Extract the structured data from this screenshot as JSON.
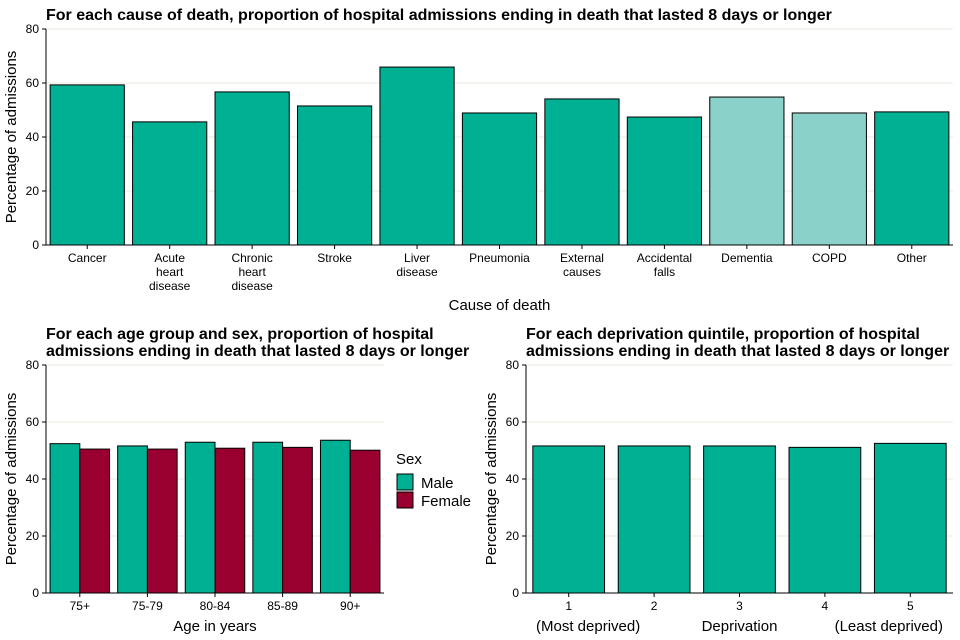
{
  "chart_data": [
    {
      "type": "bar",
      "title": "For each cause of death,  proportion of hospital admissions ending in death that lasted 8 days or longer",
      "xlabel": "Cause of death",
      "ylabel": "Percentage of admissions",
      "ylim": [
        0,
        80
      ],
      "yticks": [
        0,
        20,
        40,
        60,
        80
      ],
      "grid": true,
      "categories": [
        "Cancer",
        "Acute\nheart\ndisease",
        "Chronic\nheart\ndisease",
        "Stroke",
        "Liver\ndisease",
        "Pneumonia",
        "External\ncauses",
        "Accidental\nfalls",
        "Dementia",
        "COPD",
        "Other"
      ],
      "values": [
        59.3,
        45.6,
        56.7,
        51.5,
        65.9,
        48.9,
        54.1,
        47.4,
        54.8,
        48.9,
        49.3
      ],
      "colors": [
        "#00b093",
        "#00b093",
        "#00b093",
        "#00b093",
        "#00b093",
        "#00b093",
        "#00b093",
        "#00b093",
        "#8ad1c9",
        "#8ad1c9",
        "#00b093"
      ]
    },
    {
      "type": "bar",
      "title": "For each age group and sex, proportion of hospital\nadmissions ending in death that lasted 8 days or longer",
      "xlabel": "Age in years",
      "ylabel": "Percentage of admissions",
      "ylim": [
        0,
        80
      ],
      "yticks": [
        0,
        20,
        40,
        60,
        80
      ],
      "grid": true,
      "categories": [
        "75+",
        "75-79",
        "80-84",
        "85-89",
        "90+"
      ],
      "legend": {
        "title": "Sex",
        "placement": "right"
      },
      "series": [
        {
          "name": "Male",
          "color": "#00b093",
          "values": [
            52.4,
            51.6,
            52.9,
            52.9,
            53.6
          ]
        },
        {
          "name": "Female",
          "color": "#990030",
          "values": [
            50.5,
            50.5,
            50.8,
            51.1,
            50.1
          ]
        }
      ]
    },
    {
      "type": "bar",
      "title": "For each deprivation quintile, proportion of hospital\nadmissions ending in death that lasted 8 days or longer",
      "xlabel": "Deprivation",
      "xlabel_left": "(Most deprived)",
      "xlabel_right": "(Least deprived)",
      "ylabel": "Percentage of admissions",
      "ylim": [
        0,
        80
      ],
      "yticks": [
        0,
        20,
        40,
        60,
        80
      ],
      "grid": true,
      "categories": [
        "1",
        "2",
        "3",
        "4",
        "5"
      ],
      "values": [
        51.6,
        51.6,
        51.6,
        51.1,
        52.5
      ],
      "color": "#00b093"
    }
  ]
}
